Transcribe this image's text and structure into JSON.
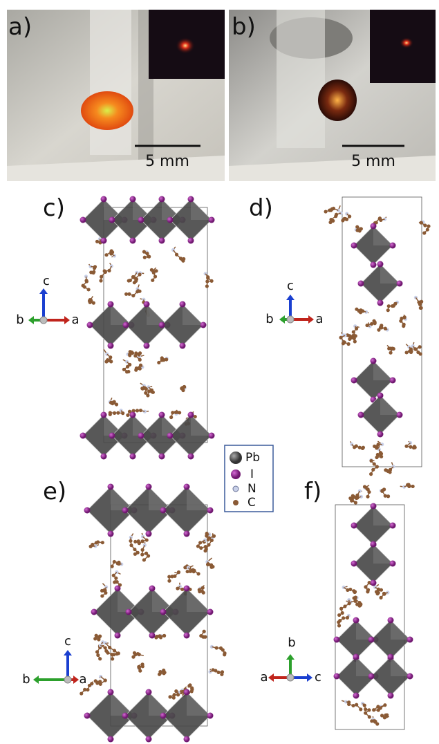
{
  "panels": [
    {
      "label": "a)",
      "scale_bar": "5 mm"
    },
    {
      "label": "b)",
      "scale_bar": "5 mm"
    },
    {
      "label": "c)",
      "axes": [
        "c",
        "b",
        "a"
      ]
    },
    {
      "label": "d)",
      "axes": [
        "c",
        "b",
        "a"
      ]
    },
    {
      "label": "e)",
      "axes": [
        "c",
        "b",
        "a"
      ]
    },
    {
      "label": "f)",
      "axes": [
        "b",
        "a",
        "c"
      ]
    }
  ],
  "legend": {
    "items": [
      "Pb",
      "I",
      "N",
      "C"
    ]
  }
}
